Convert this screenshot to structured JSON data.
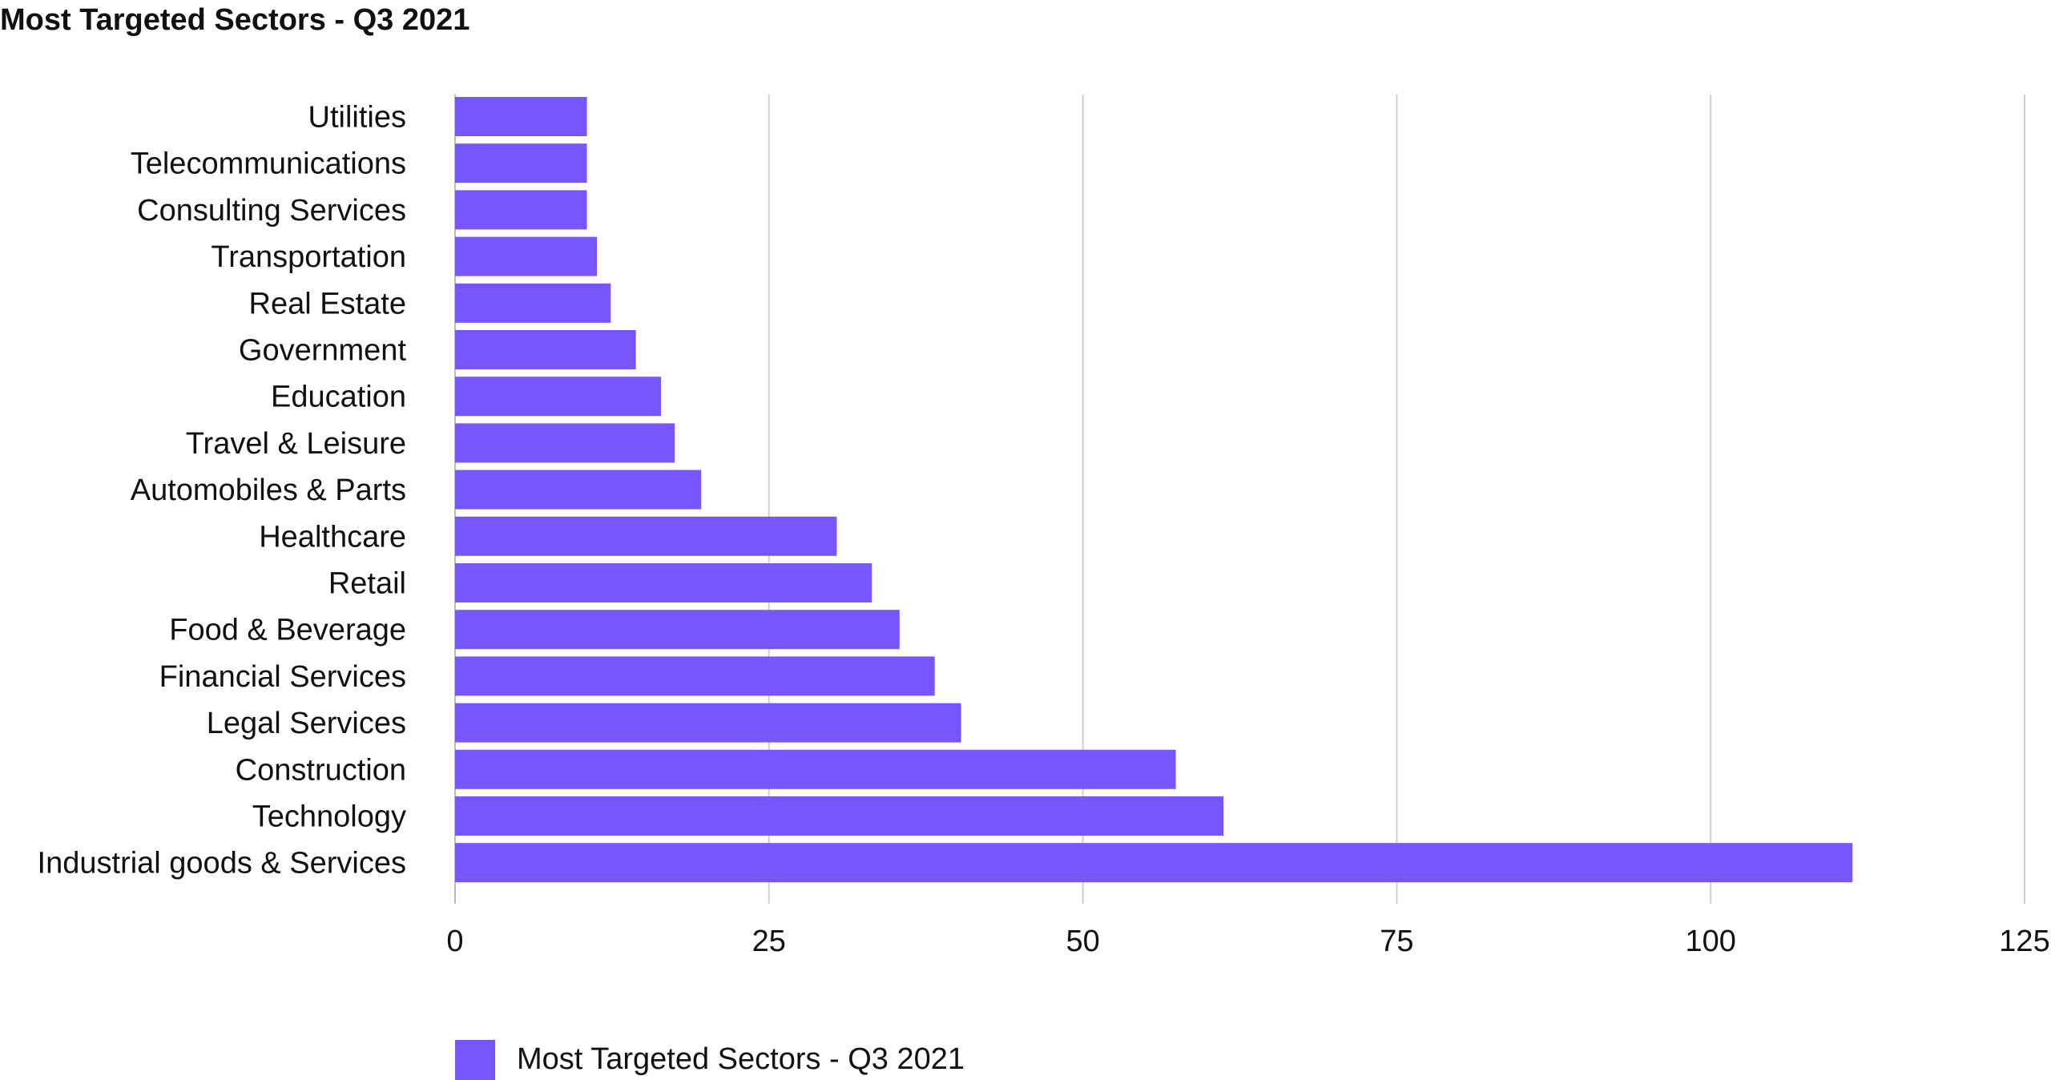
{
  "chart_data": {
    "type": "bar",
    "orientation": "horizontal",
    "title": "Most Targeted Sectors - Q3 2021",
    "categories": [
      "Utilities",
      "Telecommunications",
      "Consulting Services",
      "Transportation",
      "Real Estate",
      "Government",
      "Education",
      "Travel & Leisure",
      "Automobiles & Parts",
      "Healthcare",
      "Retail",
      "Food & Beverage",
      "Financial Services",
      "Legal Services",
      "Construction",
      "Technology",
      "Industrial goods & Services"
    ],
    "series": [
      {
        "name": "Most Targeted Sectors - Q3 2021",
        "color": "#7856FF",
        "values": [
          10.5,
          10.5,
          10.5,
          11.3,
          12.4,
          14.4,
          16.4,
          17.5,
          19.6,
          30.4,
          33.2,
          35.4,
          38.2,
          40.3,
          57.4,
          61.2,
          111.3
        ]
      }
    ],
    "xlim": [
      0,
      125
    ],
    "xticks": [
      "0",
      "25",
      "50",
      "75",
      "100",
      "125"
    ],
    "grid": true,
    "legend": "bottom-left"
  }
}
